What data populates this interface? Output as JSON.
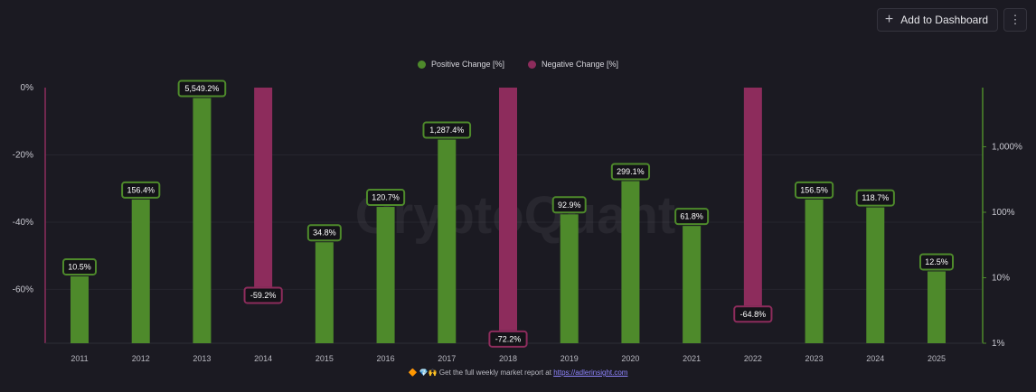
{
  "toolbar": {
    "add_label": "Add to Dashboard",
    "add_icon": "plus-icon",
    "more_icon": "more-vertical-icon",
    "more_glyph": "⋮"
  },
  "footer": {
    "icons": "🔶 💎🙌",
    "text": "Get the full weekly market report at",
    "link": "https://adlerinsight.com"
  },
  "watermark": "CryptoQuant",
  "colors": {
    "positive": "#4e8a2b",
    "negative": "#8d2c5c",
    "background": "#1b1a22"
  },
  "chart_data": {
    "type": "bar",
    "categories": [
      "2011",
      "2012",
      "2013",
      "2014",
      "2015",
      "2016",
      "2017",
      "2018",
      "2019",
      "2020",
      "2021",
      "2022",
      "2023",
      "2024",
      "2025"
    ],
    "series": [
      {
        "name": "Positive Change [%]",
        "axis": "right-log",
        "values": [
          10.5,
          156.4,
          5549.2,
          null,
          34.8,
          120.7,
          1287.4,
          null,
          92.9,
          299.1,
          61.8,
          null,
          156.5,
          118.7,
          12.5
        ],
        "labels": [
          "10.5%",
          "156.4%",
          "5,549.2%",
          "",
          "34.8%",
          "120.7%",
          "1,287.4%",
          "",
          "92.9%",
          "299.1%",
          "61.8%",
          "",
          "156.5%",
          "118.7%",
          "12.5%"
        ]
      },
      {
        "name": "Negative Change [%]",
        "axis": "left-linear",
        "values": [
          null,
          null,
          null,
          -59.2,
          null,
          null,
          null,
          -72.2,
          null,
          null,
          null,
          -64.8,
          null,
          null,
          null
        ],
        "labels": [
          "",
          "",
          "",
          "-59.2%",
          "",
          "",
          "",
          "-72.2%",
          "",
          "",
          "",
          "-64.8%",
          "",
          "",
          ""
        ]
      }
    ],
    "left_axis": {
      "ticks": [
        "0%",
        "-20%",
        "-40%",
        "-60%"
      ],
      "tick_values": [
        0,
        -20,
        -40,
        -60
      ],
      "range": [
        0,
        -76
      ]
    },
    "right_axis": {
      "ticks": [
        "1,000%",
        "100%",
        "10%",
        "1%"
      ],
      "tick_values": [
        1000,
        100,
        10,
        1
      ],
      "scale": "log",
      "range": [
        1,
        8000
      ]
    },
    "legend": "top-center",
    "grid": true
  }
}
